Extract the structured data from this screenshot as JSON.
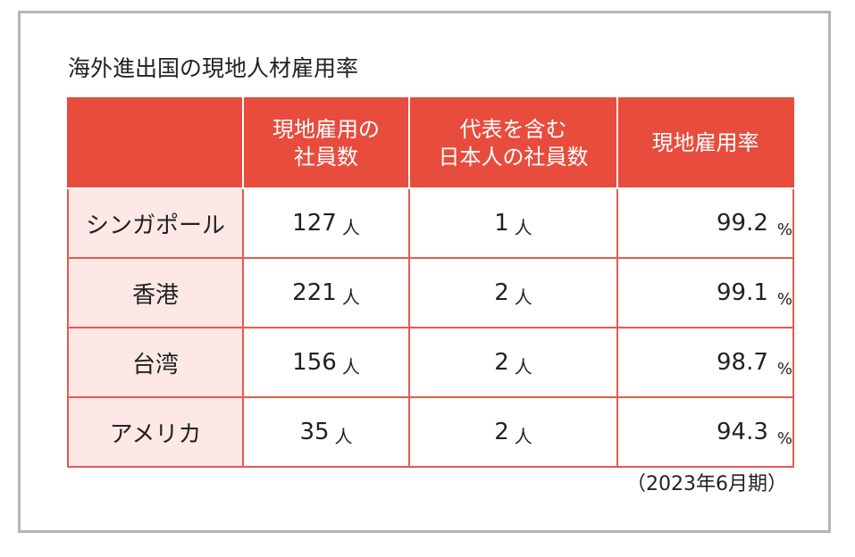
{
  "title": "海外進出国の現地人材雇用率",
  "headers": {
    "blank": "",
    "local_employees_line1": "現地雇用の",
    "local_employees_line2": "社員数",
    "japanese_employees_line1": "代表を含む",
    "japanese_employees_line2": "日本人の社員数",
    "rate": "現地雇用率"
  },
  "rows": [
    {
      "country": "シンガポール",
      "local": "127",
      "local_unit": "人",
      "japanese": "1",
      "japanese_unit": "人",
      "rate": "99.2",
      "rate_unit": "%"
    },
    {
      "country": "香港",
      "local": "221",
      "local_unit": "人",
      "japanese": "2",
      "japanese_unit": "人",
      "rate": "99.1",
      "rate_unit": "%"
    },
    {
      "country": "台湾",
      "local": "156",
      "local_unit": "人",
      "japanese": "2",
      "japanese_unit": "人",
      "rate": "98.7",
      "rate_unit": "%"
    },
    {
      "country": "アメリカ",
      "local": "35",
      "local_unit": "人",
      "japanese": "2",
      "japanese_unit": "人",
      "rate": "94.3",
      "rate_unit": "%"
    }
  ],
  "period": "（2023年6月期）",
  "colors": {
    "header_bg": "#e84c3d",
    "country_bg": "#fde8e6",
    "border": "#e85a4f",
    "frame": "#b5b5b5"
  }
}
